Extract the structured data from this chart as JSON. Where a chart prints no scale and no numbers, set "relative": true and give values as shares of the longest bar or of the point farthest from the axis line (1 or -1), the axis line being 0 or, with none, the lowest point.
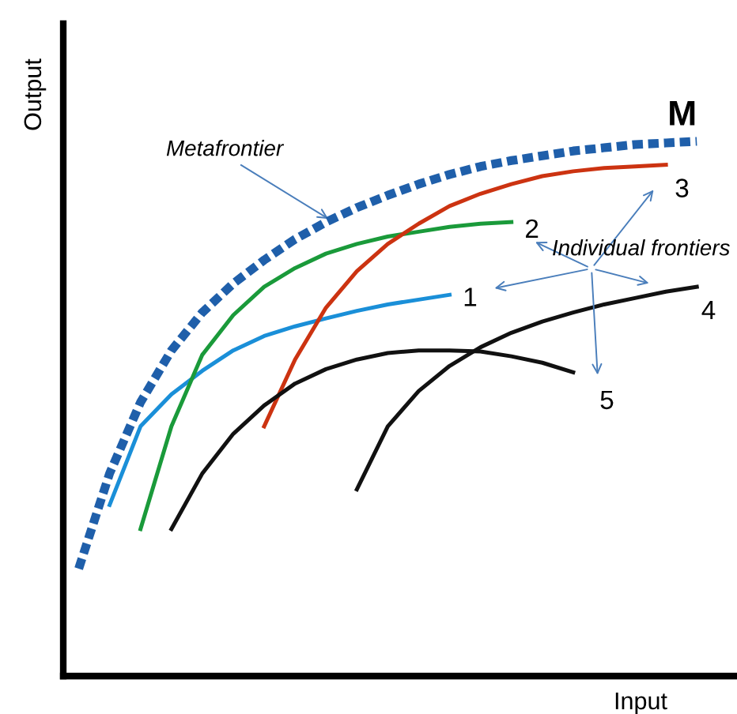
{
  "chart_data": {
    "type": "line",
    "relative": true,
    "xlabel": "Input",
    "ylabel": "Output",
    "legend": false,
    "grid": false,
    "categories": [
      null,
      null,
      null,
      null,
      null,
      null,
      null,
      null,
      null,
      null,
      null,
      null,
      null,
      null,
      null,
      null,
      null,
      null,
      null,
      null,
      null
    ],
    "series": [
      {
        "name": "M",
        "color": "#1f5faa",
        "line_style": "dashed",
        "values": [
          0.201,
          0.379,
          0.512,
          0.609,
          0.68,
          0.734,
          0.778,
          0.817,
          0.849,
          0.876,
          0.899,
          0.92,
          0.938,
          0.953,
          0.964,
          0.973,
          0.982,
          0.988,
          0.994,
          0.997,
          1.0
        ]
      },
      {
        "name": "1",
        "color": "#1a8fd8",
        "line_style": "solid",
        "values": [
          null,
          0.32,
          0.467,
          0.527,
          0.571,
          0.609,
          0.636,
          0.654,
          0.669,
          0.683,
          0.695,
          0.704,
          0.713,
          null,
          null,
          null,
          null,
          null,
          null,
          null,
          null
        ]
      },
      {
        "name": "2",
        "color": "#1a9a3a",
        "line_style": "solid",
        "values": [
          null,
          null,
          0.275,
          0.467,
          0.601,
          0.675,
          0.728,
          0.763,
          0.79,
          0.808,
          0.822,
          0.831,
          0.84,
          0.846,
          0.849,
          null,
          null,
          null,
          null,
          null,
          null
        ]
      },
      {
        "name": "3",
        "color": "#cc3311",
        "line_style": "solid",
        "values": [
          null,
          null,
          null,
          null,
          null,
          null,
          0.467,
          0.592,
          0.689,
          0.757,
          0.808,
          0.846,
          0.879,
          0.902,
          0.92,
          0.935,
          0.944,
          0.95,
          0.953,
          0.956,
          null
        ]
      },
      {
        "name": "4",
        "color": "#111111",
        "line_style": "solid",
        "values": [
          null,
          null,
          null,
          null,
          null,
          null,
          null,
          null,
          null,
          0.349,
          0.467,
          0.533,
          0.58,
          0.615,
          0.642,
          0.663,
          0.68,
          0.695,
          0.707,
          0.719,
          0.728
        ]
      },
      {
        "name": "5",
        "color": "#111111",
        "line_style": "solid",
        "values": [
          null,
          null,
          null,
          0.275,
          0.379,
          0.453,
          0.506,
          0.547,
          0.574,
          0.592,
          0.604,
          0.609,
          0.609,
          0.607,
          0.598,
          0.586,
          0.568,
          null,
          null,
          null,
          null
        ]
      }
    ],
    "annotations": [
      "Metafrontier",
      "Individual frontiers"
    ]
  }
}
